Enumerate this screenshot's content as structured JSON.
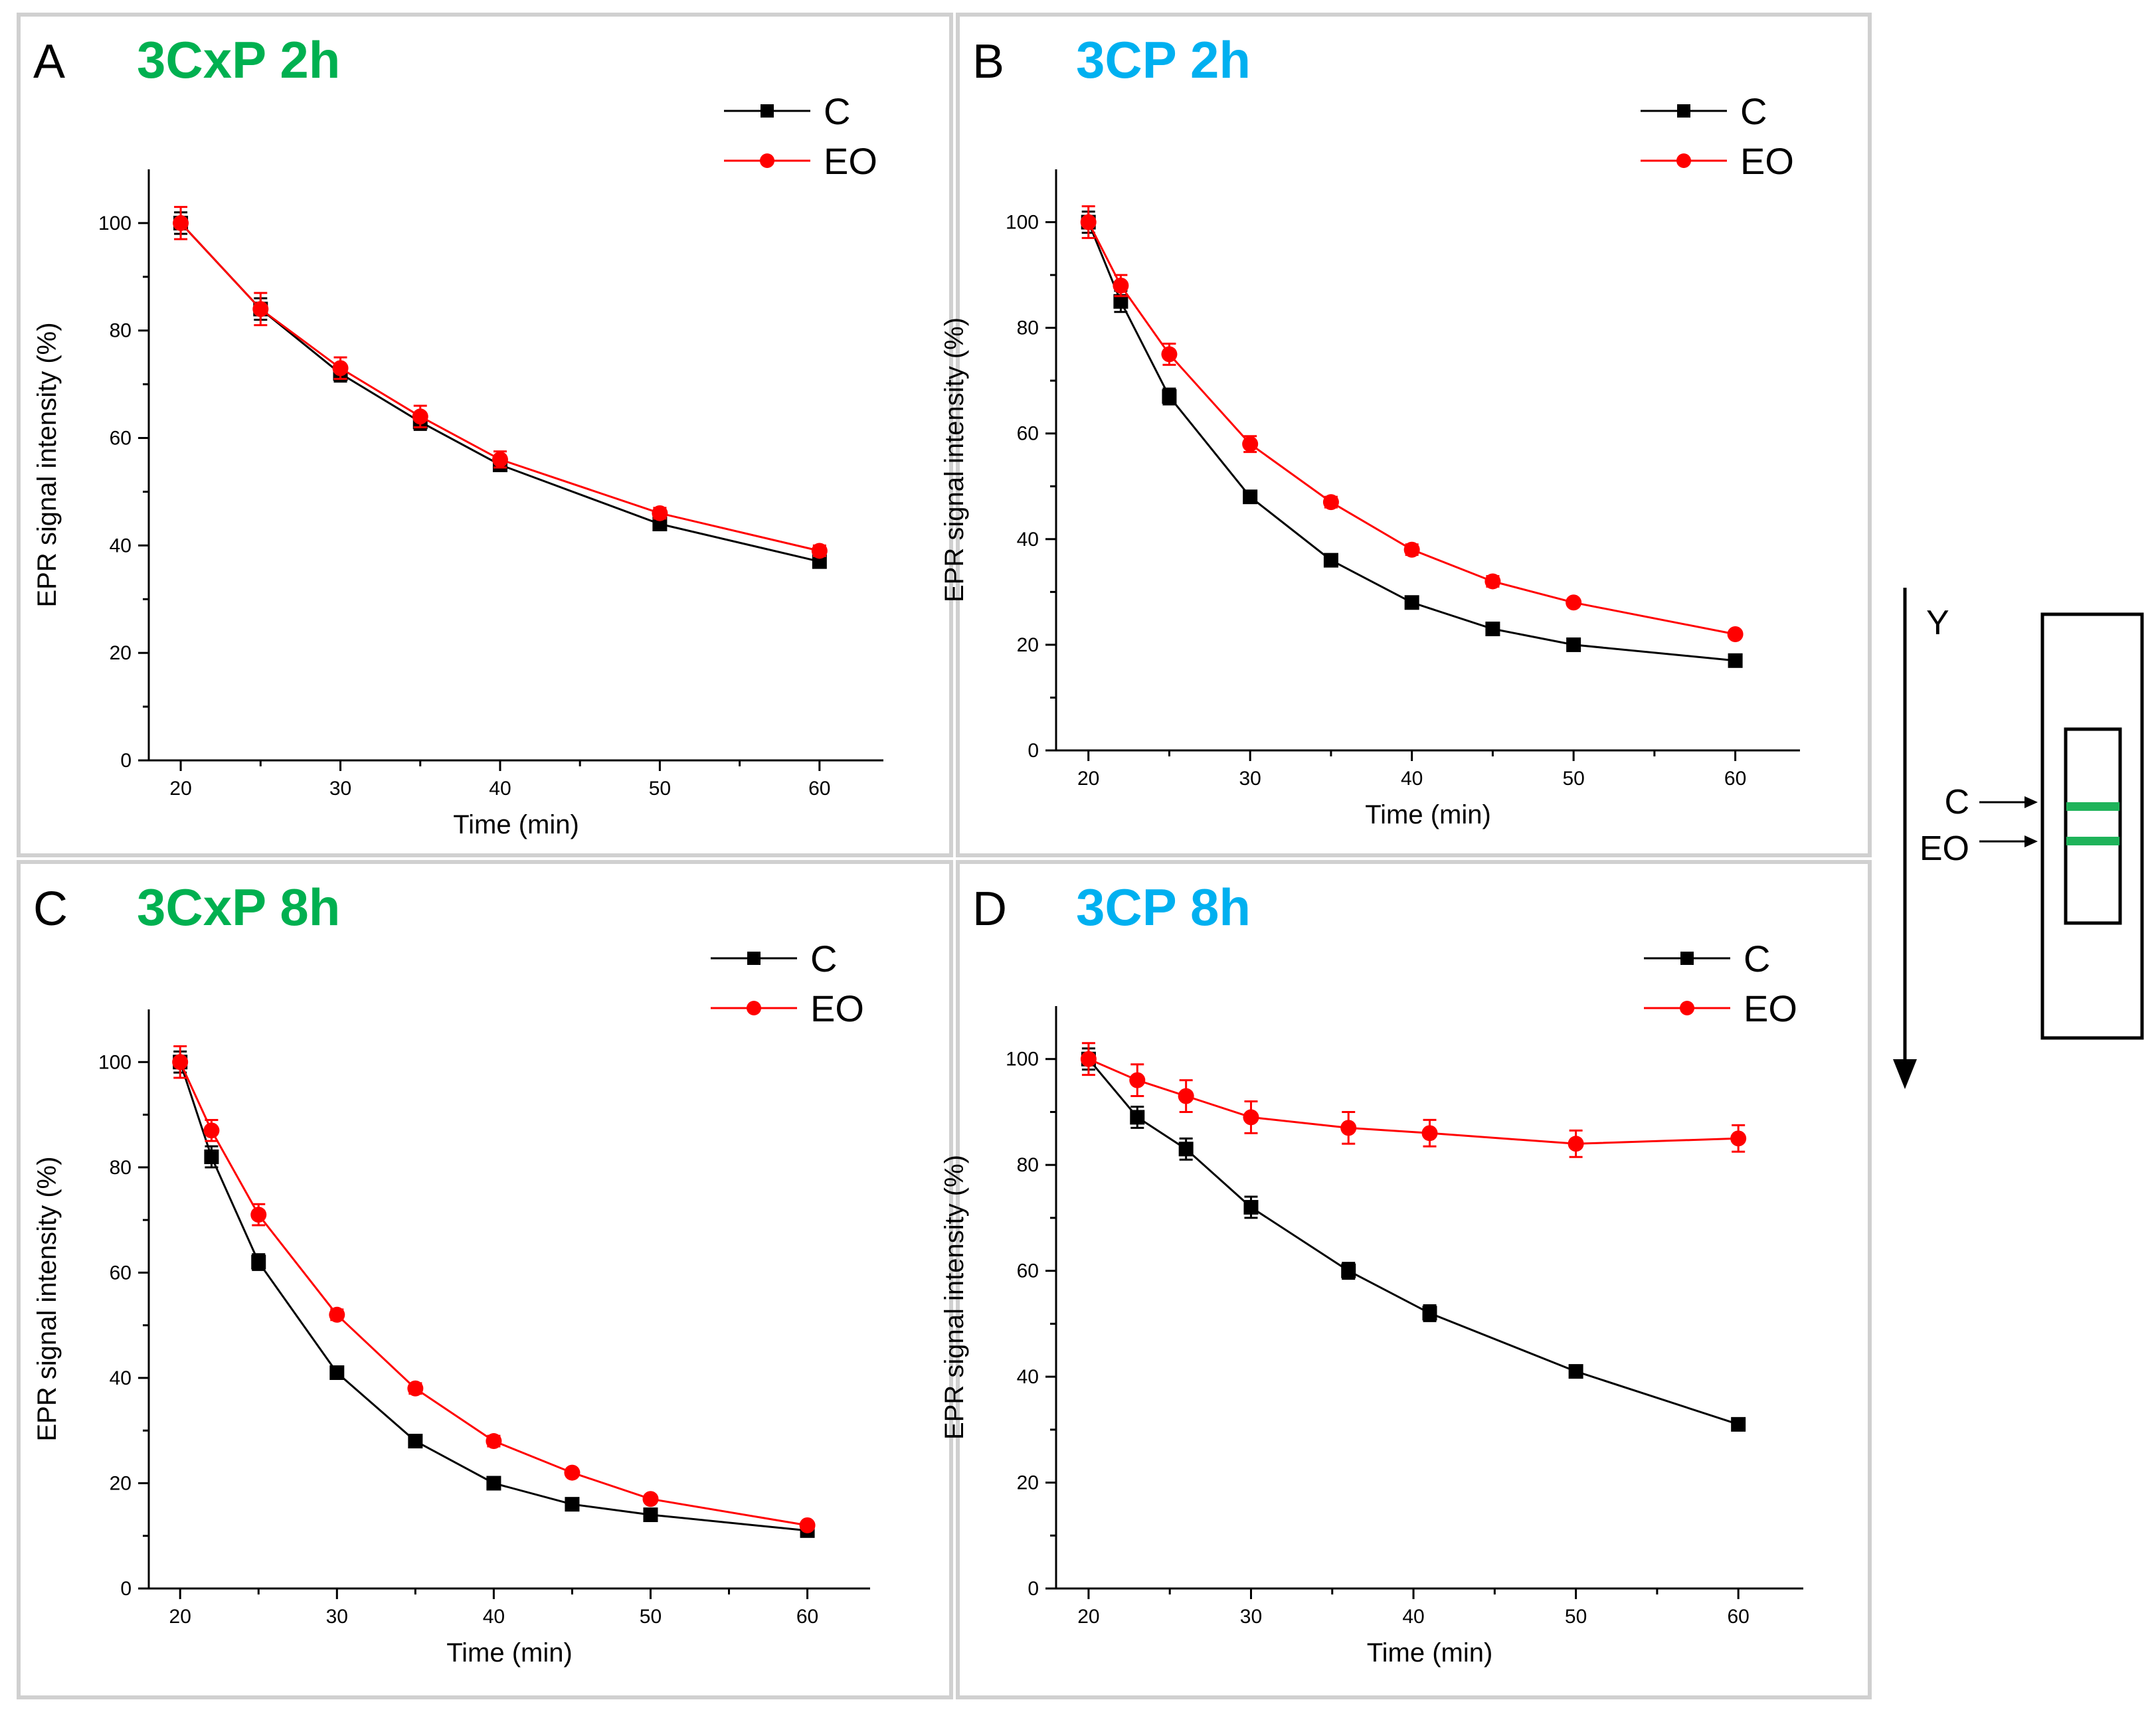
{
  "colors": {
    "control": "#000000",
    "eo": "#ff0000",
    "title_3cxp": "#00b050",
    "title_3cp": "#00b0f0",
    "band": "#1fb35a",
    "panel_border": "#d0d0d0"
  },
  "chart_data": [
    {
      "panel": "A",
      "type": "line",
      "title": "3CxP 2h",
      "xlabel": "Time (min)",
      "ylabel": "EPR signal intensity (%)",
      "xlim": [
        18,
        64
      ],
      "ylim": [
        0,
        110
      ],
      "xticks": [
        20,
        30,
        40,
        50,
        60
      ],
      "yticks": [
        0,
        20,
        40,
        60,
        80,
        100
      ],
      "legend": "top-right",
      "series": [
        {
          "name": "C",
          "marker": "square",
          "x": [
            20,
            25,
            30,
            35,
            40,
            50,
            60
          ],
          "values": [
            100,
            84,
            72,
            63,
            55,
            44,
            37
          ],
          "err": [
            2,
            2,
            1.5,
            1.5,
            1,
            1,
            1
          ]
        },
        {
          "name": "EO",
          "marker": "circle",
          "x": [
            20,
            25,
            30,
            35,
            40,
            50,
            60
          ],
          "values": [
            100,
            84,
            73,
            64,
            56,
            46,
            39
          ],
          "err": [
            3,
            3,
            2,
            2,
            1.5,
            1,
            1
          ]
        }
      ]
    },
    {
      "panel": "B",
      "type": "line",
      "title": "3CP 2h",
      "xlabel": "Time (min)",
      "ylabel": "EPR signal intensity (%)",
      "xlim": [
        18,
        64
      ],
      "ylim": [
        0,
        110
      ],
      "xticks": [
        20,
        30,
        40,
        50,
        60
      ],
      "yticks": [
        0,
        20,
        40,
        60,
        80,
        100
      ],
      "legend": "top-right",
      "series": [
        {
          "name": "C",
          "marker": "square",
          "x": [
            20,
            22,
            25,
            30,
            35,
            40,
            45,
            50,
            60
          ],
          "values": [
            100,
            85,
            67,
            48,
            36,
            28,
            23,
            20,
            17
          ],
          "err": [
            2,
            2,
            1.5,
            1,
            1,
            1,
            0.5,
            0.5,
            0.5
          ]
        },
        {
          "name": "EO",
          "marker": "circle",
          "x": [
            20,
            22,
            25,
            30,
            35,
            40,
            45,
            50,
            60
          ],
          "values": [
            100,
            88,
            75,
            58,
            47,
            38,
            32,
            28,
            22
          ],
          "err": [
            3,
            2,
            2,
            1.5,
            1,
            1,
            1,
            0.5,
            0.5
          ]
        }
      ]
    },
    {
      "panel": "C",
      "type": "line",
      "title": "3CxP 8h",
      "xlabel": "Time (min)",
      "ylabel": "EPR signal intensity (%)",
      "xlim": [
        18,
        64
      ],
      "ylim": [
        0,
        110
      ],
      "xticks": [
        20,
        30,
        40,
        50,
        60
      ],
      "yticks": [
        0,
        20,
        40,
        60,
        80,
        100
      ],
      "legend": "top-right",
      "series": [
        {
          "name": "C",
          "marker": "square",
          "x": [
            20,
            22,
            25,
            30,
            35,
            40,
            45,
            50,
            60
          ],
          "values": [
            100,
            82,
            62,
            41,
            28,
            20,
            16,
            14,
            11
          ],
          "err": [
            2,
            2,
            1.5,
            1,
            1,
            0.5,
            0.5,
            0.5,
            0.5
          ]
        },
        {
          "name": "EO",
          "marker": "circle",
          "x": [
            20,
            22,
            25,
            30,
            35,
            40,
            45,
            50,
            60
          ],
          "values": [
            100,
            87,
            71,
            52,
            38,
            28,
            22,
            17,
            12
          ],
          "err": [
            3,
            2,
            2,
            1,
            1,
            1,
            0.5,
            0.5,
            0.5
          ]
        }
      ]
    },
    {
      "panel": "D",
      "type": "line",
      "title": "3CP 8h",
      "xlabel": "Time (min)",
      "ylabel": "EPR signal intensity (%)",
      "xlim": [
        18,
        64
      ],
      "ylim": [
        0,
        110
      ],
      "xticks": [
        20,
        30,
        40,
        50,
        60
      ],
      "yticks": [
        0,
        20,
        40,
        60,
        80,
        100
      ],
      "legend": "top-right",
      "series": [
        {
          "name": "C",
          "marker": "square",
          "x": [
            20,
            23,
            26,
            30,
            36,
            41,
            50,
            60
          ],
          "values": [
            100,
            89,
            83,
            72,
            60,
            52,
            41,
            31
          ],
          "err": [
            2,
            2,
            2,
            2,
            1.5,
            1.5,
            1,
            0.5
          ]
        },
        {
          "name": "EO",
          "marker": "circle",
          "x": [
            20,
            23,
            26,
            30,
            36,
            41,
            50,
            60
          ],
          "values": [
            100,
            96,
            93,
            89,
            87,
            86,
            84,
            85
          ],
          "err": [
            3,
            3,
            3,
            3,
            3,
            2.5,
            2.5,
            2.5
          ]
        }
      ]
    }
  ],
  "schematic": {
    "axis_label": "Y",
    "c_label": "C",
    "eo_label": "EO"
  }
}
